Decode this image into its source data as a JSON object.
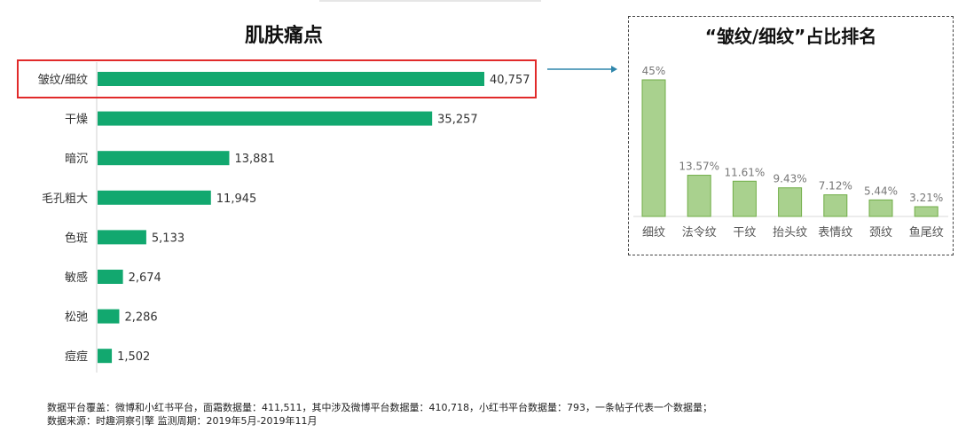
{
  "left_chart": {
    "title": "肌肤痛点",
    "highlighted_category": "皱纹/细纹"
  },
  "right_chart": {
    "title": "“皱纹/细纹”占比排名"
  },
  "footnote": {
    "line1": "数据平台覆盖：微博和小红书平台，面霜数据量：411,511，其中涉及微博平台数据量：410,718，小红书平台数据量：793，一条帖子代表一个数据量；",
    "line2": "数据来源：时趣洞察引擎   监测周期：2019年5月-2019年11月"
  },
  "colors": {
    "left_bar": "#12a86f",
    "right_bar": "#a9d18e",
    "right_bar_border": "#70ad47",
    "highlight": "#e12a2a",
    "arrow": "#2e86ab"
  },
  "chart_data": [
    {
      "type": "bar",
      "orientation": "horizontal",
      "title": "肌肤痛点",
      "categories": [
        "皱纹/细纹",
        "干燥",
        "暗沉",
        "毛孔粗大",
        "色斑",
        "敏感",
        "松弛",
        "痘痘"
      ],
      "values": [
        40757,
        35257,
        13881,
        11945,
        5133,
        2674,
        2286,
        1502
      ],
      "value_labels": [
        "40,757",
        "35,257",
        "13,881",
        "11,945",
        "5,133",
        "2,674",
        "2,286",
        "1,502"
      ],
      "xlim": [
        0,
        40757
      ],
      "grid": false,
      "legend": "none"
    },
    {
      "type": "bar",
      "orientation": "vertical",
      "title": "“皱纹/细纹”占比排名",
      "categories": [
        "细纹",
        "法令纹",
        "干纹",
        "抬头纹",
        "表情纹",
        "颈纹",
        "鱼尾纹"
      ],
      "values": [
        45,
        13.57,
        11.61,
        9.43,
        7.12,
        5.44,
        3.21
      ],
      "value_labels": [
        "45%",
        "13.57%",
        "11.61%",
        "9.43%",
        "7.12%",
        "5.44%",
        "3.21%"
      ],
      "ylim": [
        0,
        45
      ],
      "grid": false,
      "legend": "none"
    }
  ]
}
